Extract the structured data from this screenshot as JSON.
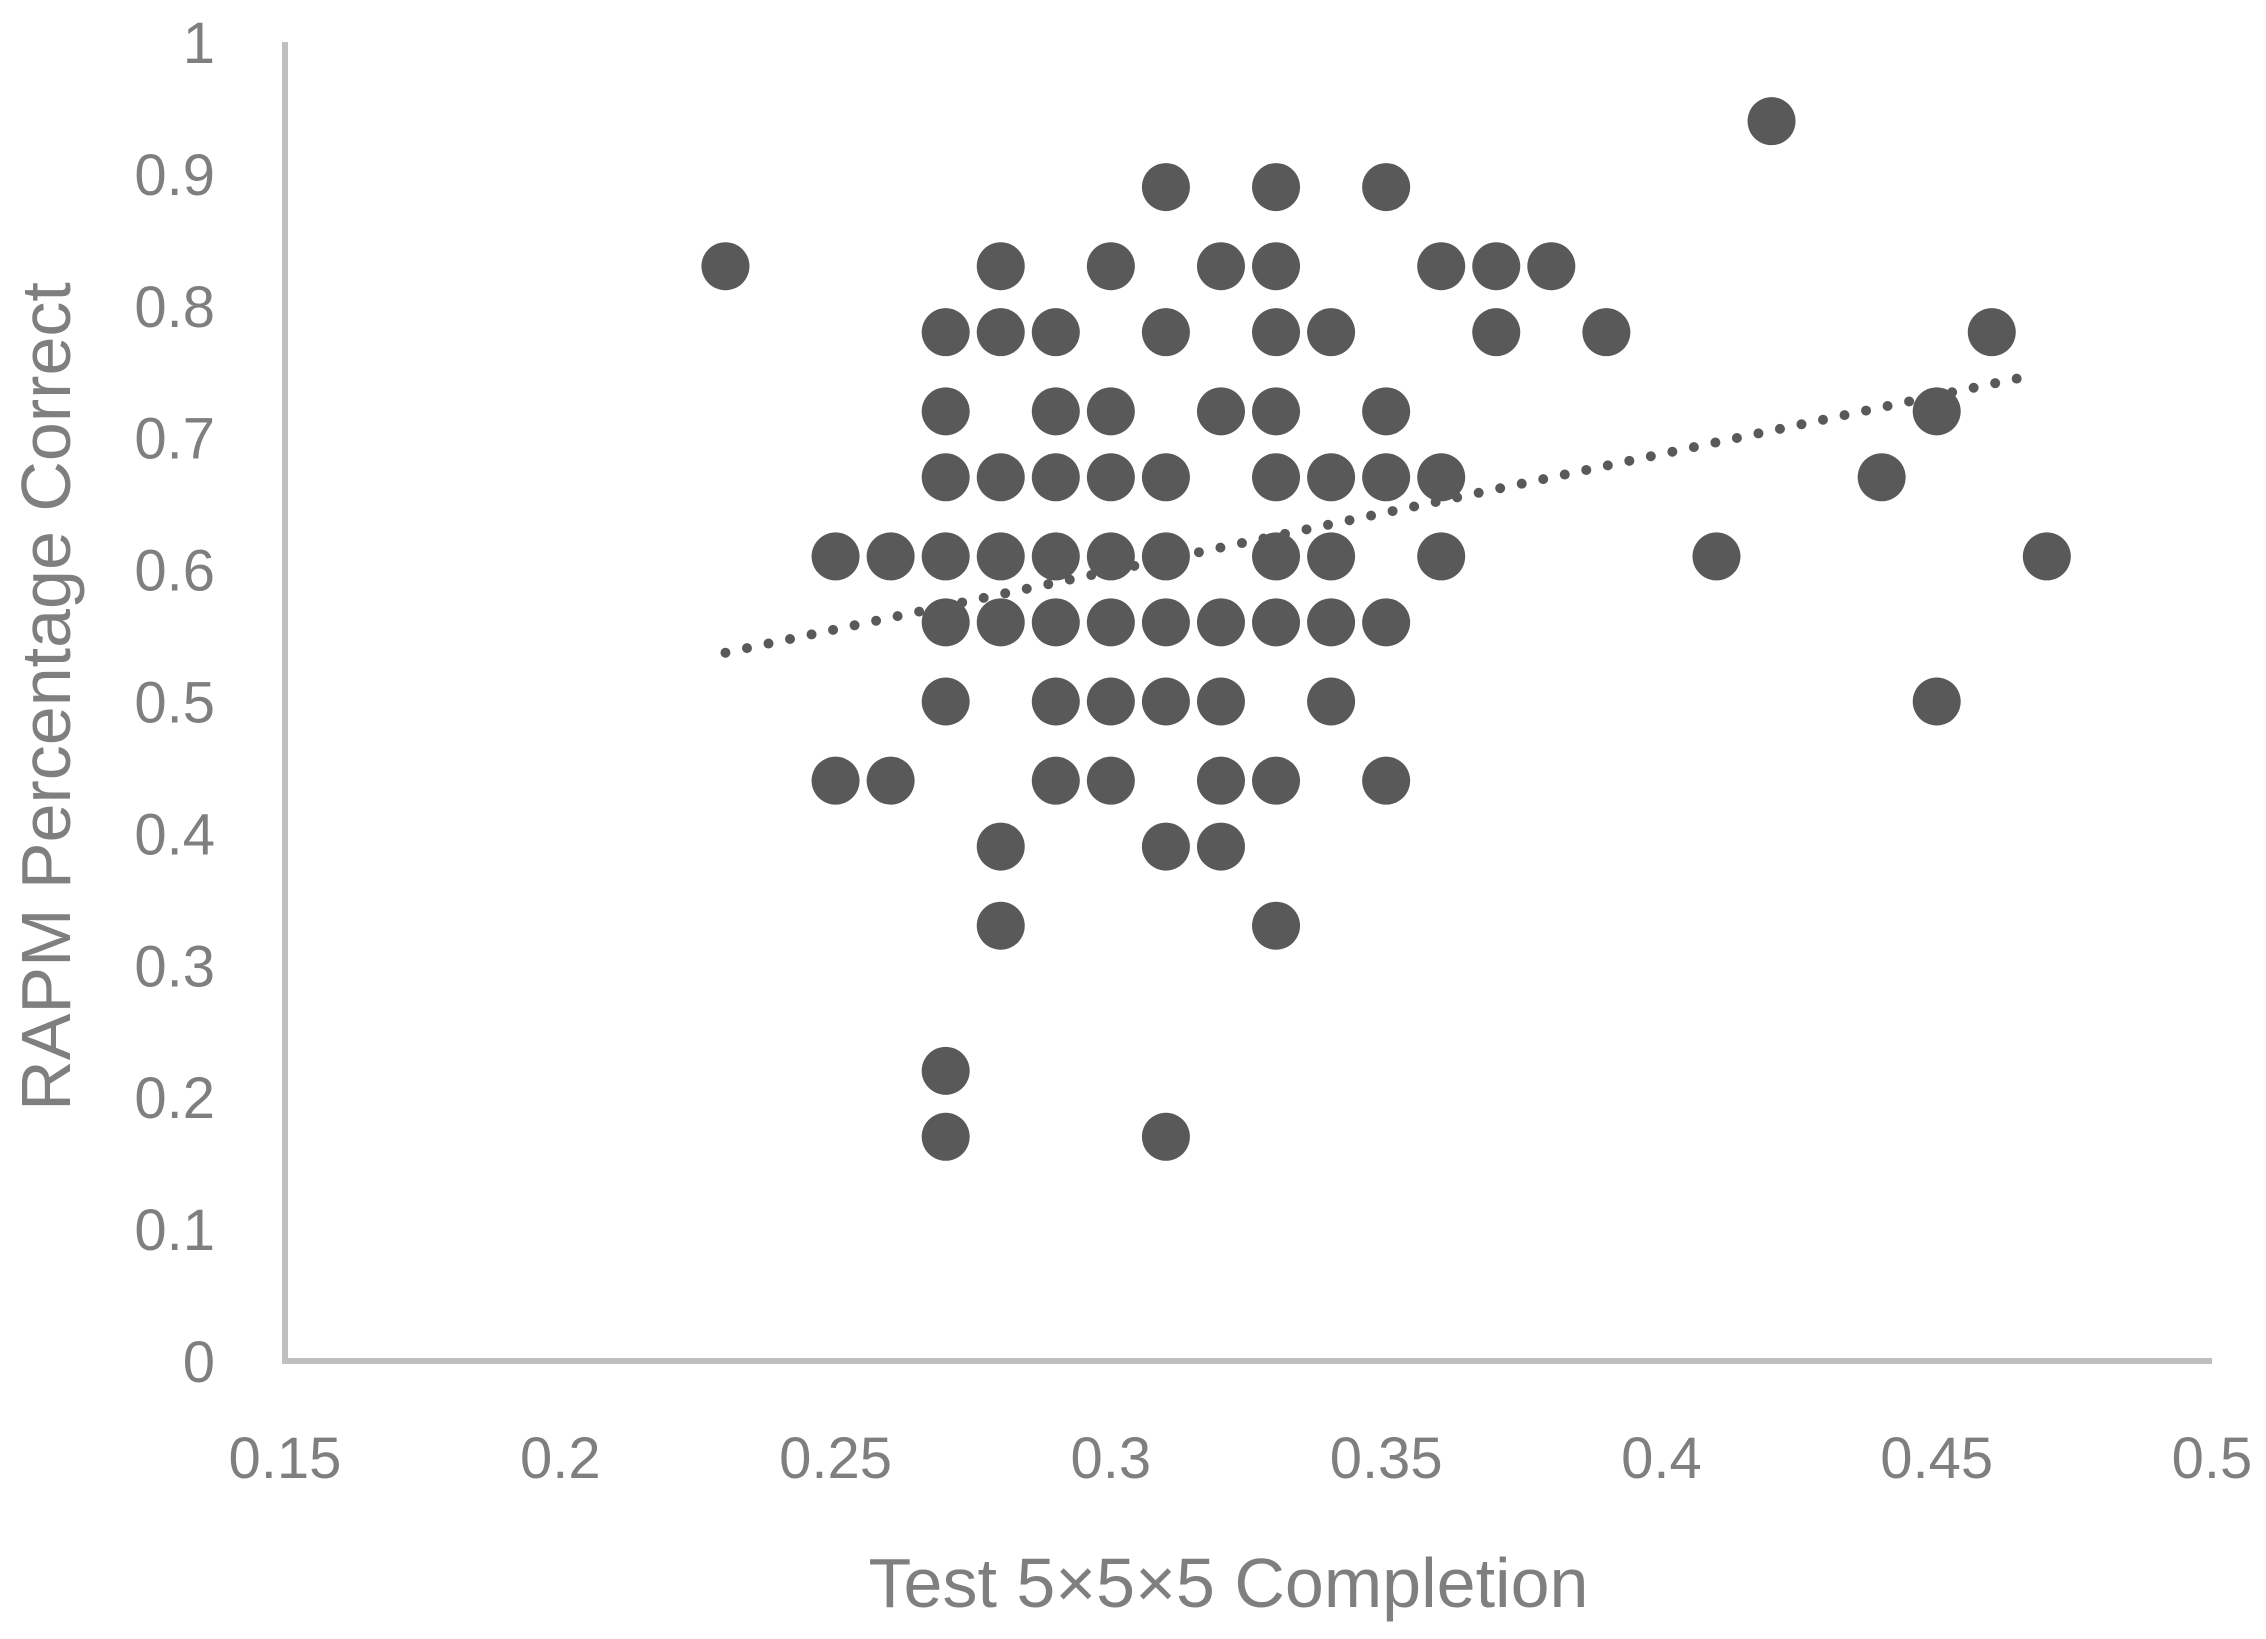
{
  "chart_data": {
    "type": "scatter",
    "title": "",
    "xlabel": "Test 5×5×5 Completion",
    "ylabel": "RAPM Percentage Correct",
    "xlim": [
      0.15,
      0.5
    ],
    "ylim": [
      0,
      1
    ],
    "x_ticks": [
      "0.15",
      "0.2",
      "0.25",
      "0.3",
      "0.35",
      "0.4",
      "0.45",
      "0.5"
    ],
    "y_ticks": [
      "0",
      "0.1",
      "0.2",
      "0.3",
      "0.4",
      "0.5",
      "0.6",
      "0.7",
      "0.8",
      "0.9",
      "1"
    ],
    "grid": false,
    "legend": "none",
    "trendline": {
      "type": "linear",
      "style": "dotted",
      "x": [
        0.23,
        0.467
      ],
      "y": [
        0.537,
        0.747
      ]
    },
    "colors": {
      "points": "#595959",
      "axis": "#bfbfbf",
      "text": "#7f7f7f"
    },
    "points": [
      [
        0.23,
        0.83
      ],
      [
        0.25,
        0.61
      ],
      [
        0.25,
        0.44
      ],
      [
        0.26,
        0.61
      ],
      [
        0.26,
        0.44
      ],
      [
        0.27,
        0.78
      ],
      [
        0.27,
        0.72
      ],
      [
        0.27,
        0.67
      ],
      [
        0.27,
        0.61
      ],
      [
        0.27,
        0.56
      ],
      [
        0.27,
        0.5
      ],
      [
        0.27,
        0.22
      ],
      [
        0.27,
        0.17
      ],
      [
        0.28,
        0.83
      ],
      [
        0.28,
        0.78
      ],
      [
        0.28,
        0.67
      ],
      [
        0.28,
        0.61
      ],
      [
        0.28,
        0.56
      ],
      [
        0.28,
        0.39
      ],
      [
        0.28,
        0.33
      ],
      [
        0.29,
        0.78
      ],
      [
        0.29,
        0.72
      ],
      [
        0.29,
        0.67
      ],
      [
        0.29,
        0.61
      ],
      [
        0.29,
        0.56
      ],
      [
        0.29,
        0.5
      ],
      [
        0.29,
        0.44
      ],
      [
        0.3,
        0.83
      ],
      [
        0.3,
        0.72
      ],
      [
        0.3,
        0.67
      ],
      [
        0.3,
        0.61
      ],
      [
        0.3,
        0.56
      ],
      [
        0.3,
        0.5
      ],
      [
        0.3,
        0.44
      ],
      [
        0.31,
        0.89
      ],
      [
        0.31,
        0.78
      ],
      [
        0.31,
        0.67
      ],
      [
        0.31,
        0.61
      ],
      [
        0.31,
        0.56
      ],
      [
        0.31,
        0.5
      ],
      [
        0.31,
        0.39
      ],
      [
        0.31,
        0.17
      ],
      [
        0.32,
        0.83
      ],
      [
        0.32,
        0.72
      ],
      [
        0.32,
        0.56
      ],
      [
        0.32,
        0.5
      ],
      [
        0.32,
        0.44
      ],
      [
        0.32,
        0.39
      ],
      [
        0.33,
        0.89
      ],
      [
        0.33,
        0.83
      ],
      [
        0.33,
        0.78
      ],
      [
        0.33,
        0.72
      ],
      [
        0.33,
        0.67
      ],
      [
        0.33,
        0.61
      ],
      [
        0.33,
        0.56
      ],
      [
        0.33,
        0.44
      ],
      [
        0.33,
        0.33
      ],
      [
        0.34,
        0.78
      ],
      [
        0.34,
        0.67
      ],
      [
        0.34,
        0.61
      ],
      [
        0.34,
        0.56
      ],
      [
        0.34,
        0.5
      ],
      [
        0.35,
        0.89
      ],
      [
        0.35,
        0.72
      ],
      [
        0.35,
        0.67
      ],
      [
        0.35,
        0.56
      ],
      [
        0.35,
        0.44
      ],
      [
        0.36,
        0.83
      ],
      [
        0.36,
        0.67
      ],
      [
        0.36,
        0.61
      ],
      [
        0.37,
        0.83
      ],
      [
        0.37,
        0.78
      ],
      [
        0.38,
        0.83
      ],
      [
        0.39,
        0.78
      ],
      [
        0.41,
        0.61
      ],
      [
        0.42,
        0.94
      ],
      [
        0.44,
        0.67
      ],
      [
        0.45,
        0.72
      ],
      [
        0.45,
        0.5
      ],
      [
        0.46,
        0.78
      ],
      [
        0.47,
        0.61
      ]
    ]
  }
}
